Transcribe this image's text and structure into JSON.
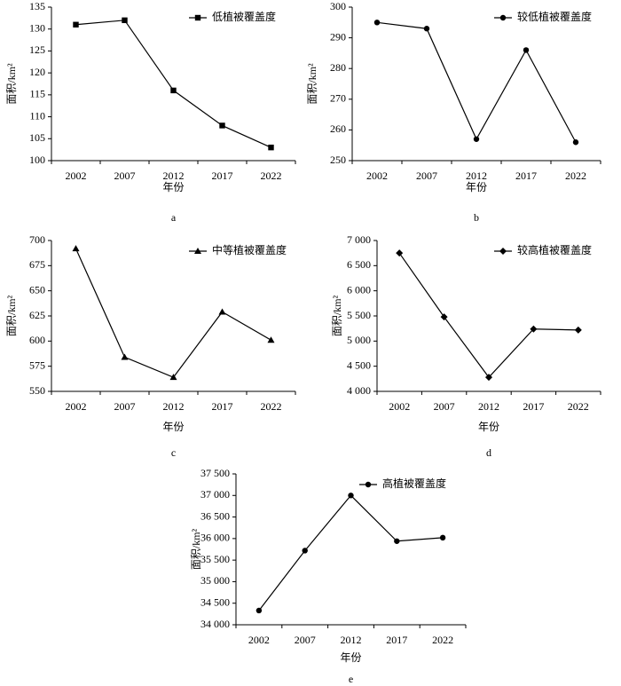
{
  "chart_data": [
    {
      "type": "line",
      "caption": "a",
      "xlabel": "年份",
      "ylabel": "面积/km²",
      "categories": [
        "2002",
        "2007",
        "2012",
        "2017",
        "2022"
      ],
      "series": [
        {
          "name": "低植被覆盖度",
          "color": "#000000",
          "marker": "square",
          "values": [
            131,
            132,
            116,
            108,
            103
          ]
        }
      ],
      "ylim": [
        100,
        135
      ],
      "yticks": [
        100,
        105,
        110,
        115,
        120,
        125,
        130,
        135
      ],
      "grid": false
    },
    {
      "type": "line",
      "caption": "b",
      "xlabel": "年份",
      "ylabel": "面积/km²",
      "categories": [
        "2002",
        "2007",
        "2012",
        "2017",
        "2022"
      ],
      "series": [
        {
          "name": "较低植被覆盖度",
          "color": "#000000",
          "marker": "circle",
          "values": [
            295,
            293,
            257,
            286,
            256
          ]
        }
      ],
      "ylim": [
        250,
        300
      ],
      "yticks": [
        250,
        260,
        270,
        280,
        290,
        300
      ],
      "grid": false
    },
    {
      "type": "line",
      "caption": "c",
      "xlabel": "年份",
      "ylabel": "面积/km²",
      "categories": [
        "2002",
        "2007",
        "2012",
        "2017",
        "2022"
      ],
      "series": [
        {
          "name": "中等植被覆盖度",
          "color": "#000000",
          "marker": "triangle",
          "values": [
            692,
            584,
            564,
            629,
            601
          ]
        }
      ],
      "ylim": [
        550,
        700
      ],
      "yticks": [
        550,
        575,
        600,
        625,
        650,
        675,
        700
      ],
      "grid": false
    },
    {
      "type": "line",
      "caption": "d",
      "xlabel": "年份",
      "ylabel": "面积/km²",
      "categories": [
        "2002",
        "2007",
        "2012",
        "2017",
        "2022"
      ],
      "series": [
        {
          "name": "较高植被覆盖度",
          "color": "#000000",
          "marker": "diamond",
          "values": [
            6750,
            5480,
            4280,
            5240,
            5220
          ]
        }
      ],
      "ylim": [
        4000,
        7000
      ],
      "yticks": [
        {
          "value": 4000,
          "label": "4 000"
        },
        {
          "value": 4500,
          "label": "4 500"
        },
        {
          "value": 5000,
          "label": "5 000"
        },
        {
          "value": 5500,
          "label": "5 500"
        },
        {
          "value": 6000,
          "label": "6 000"
        },
        {
          "value": 6500,
          "label": "6 500"
        },
        {
          "value": 7000,
          "label": "7 000"
        }
      ],
      "grid": false
    },
    {
      "type": "line",
      "caption": "e",
      "xlabel": "年份",
      "ylabel": "面积/km²",
      "categories": [
        "2002",
        "2007",
        "2012",
        "2017",
        "2022"
      ],
      "series": [
        {
          "name": "高植被覆盖度",
          "color": "#000000",
          "marker": "circle",
          "values": [
            34330,
            35720,
            37000,
            35940,
            36020
          ]
        }
      ],
      "ylim": [
        34000,
        37500
      ],
      "yticks": [
        {
          "value": 34000,
          "label": "34 000"
        },
        {
          "value": 34500,
          "label": "34 500"
        },
        {
          "value": 35000,
          "label": "35 000"
        },
        {
          "value": 35500,
          "label": "35 500"
        },
        {
          "value": 36000,
          "label": "36 000"
        },
        {
          "value": 36500,
          "label": "36 500"
        },
        {
          "value": 37000,
          "label": "37 000"
        },
        {
          "value": 37500,
          "label": "37 500"
        }
      ],
      "grid": false
    }
  ]
}
